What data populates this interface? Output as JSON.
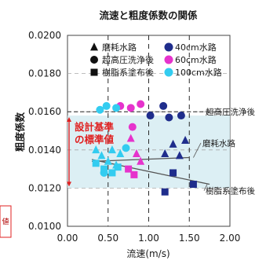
{
  "chart_data": {
    "type": "scatter",
    "title": "流速と粗度係数の関係",
    "xlabel": "流速(m/s)",
    "ylabel": "粗度係数",
    "xlim": [
      0.0,
      2.0
    ],
    "ylim": [
      0.01,
      0.02
    ],
    "x_ticks": [
      "0.00",
      "0.50",
      "1.00",
      "1.50",
      "2.00"
    ],
    "y_ticks": [
      "0.0100",
      "0.0120",
      "0.0140",
      "0.0160",
      "0.0180",
      "0.0200"
    ],
    "design_range": {
      "label": "設計基準\nの標準値",
      "ymin": 0.012,
      "ymax": 0.0158
    },
    "legend": {
      "shapes": [
        {
          "marker": "triangle",
          "label": "磨耗水路"
        },
        {
          "marker": "circle",
          "label": "超高圧洗浄後"
        },
        {
          "marker": "square",
          "label": "樹脂系塗布後"
        }
      ],
      "colors": [
        {
          "color": "#1f2d8c",
          "label": "40cm水路"
        },
        {
          "color": "#e633cc",
          "label": "60cm水路"
        },
        {
          "color": "#33ccf0",
          "label": "100cm水路"
        }
      ]
    },
    "reference_lines": [
      {
        "label": "超高圧洗浄後",
        "kind": "horizontal",
        "y": 0.016
      },
      {
        "label": "磨耗水路",
        "kind": "line",
        "points": [
          [
            0.3,
            0.0134
          ],
          [
            1.5,
            0.0136
          ]
        ]
      },
      {
        "label": "樹脂系塗布後",
        "kind": "line",
        "points": [
          [
            0.3,
            0.0135
          ],
          [
            1.75,
            0.0122
          ]
        ]
      }
    ],
    "series": [
      {
        "name": "40cm水路 超高圧洗浄後",
        "marker": "circle",
        "color": "#1f2d8c",
        "points": [
          [
            1.02,
            0.0158
          ],
          [
            1.18,
            0.0163
          ],
          [
            1.25,
            0.0157
          ],
          [
            1.4,
            0.0158
          ]
        ]
      },
      {
        "name": "60cm水路 超高圧洗浄後",
        "marker": "circle",
        "color": "#e633cc",
        "points": [
          [
            0.65,
            0.0163
          ],
          [
            0.78,
            0.0162
          ],
          [
            0.9,
            0.0164
          ],
          [
            0.8,
            0.0152
          ]
        ]
      },
      {
        "name": "100cm水路 超高圧洗浄後",
        "marker": "circle",
        "color": "#33ccf0",
        "points": [
          [
            0.4,
            0.0161
          ],
          [
            0.48,
            0.0163
          ],
          [
            0.6,
            0.0162
          ],
          [
            0.72,
            0.0141
          ],
          [
            0.45,
            0.0128
          ]
        ]
      },
      {
        "name": "40cm水路 磨耗水路",
        "marker": "triangle",
        "color": "#1f2d8c",
        "points": [
          [
            1.3,
            0.0143
          ],
          [
            1.38,
            0.0137
          ],
          [
            1.45,
            0.0145
          ],
          [
            1.2,
            0.0138
          ]
        ]
      },
      {
        "name": "60cm水路 磨耗水路",
        "marker": "triangle",
        "color": "#e633cc",
        "points": [
          [
            0.78,
            0.0146
          ],
          [
            0.85,
            0.0138
          ],
          [
            0.9,
            0.0134
          ]
        ]
      },
      {
        "name": "100cm水路 磨耗水路",
        "marker": "triangle",
        "color": "#33ccf0",
        "points": [
          [
            0.35,
            0.014
          ],
          [
            0.42,
            0.0137
          ],
          [
            0.5,
            0.0134
          ],
          [
            0.55,
            0.014
          ],
          [
            0.6,
            0.0132
          ],
          [
            0.65,
            0.0138
          ]
        ]
      },
      {
        "name": "40cm水路 樹脂系塗布後",
        "marker": "square",
        "color": "#1f2d8c",
        "points": [
          [
            1.2,
            0.0118
          ],
          [
            1.55,
            0.0122
          ],
          [
            1.3,
            0.0128
          ]
        ]
      },
      {
        "name": "60cm水路 樹脂系塗布後",
        "marker": "square",
        "color": "#e633cc",
        "points": [
          [
            0.75,
            0.013
          ],
          [
            0.82,
            0.0127
          ]
        ]
      },
      {
        "name": "100cm水路 樹脂系塗布後",
        "marker": "square",
        "color": "#33ccf0",
        "points": [
          [
            0.35,
            0.0133
          ],
          [
            0.45,
            0.013
          ],
          [
            0.55,
            0.0128
          ],
          [
            0.62,
            0.0131
          ]
        ]
      }
    ],
    "grid": true,
    "legend_position": "top-inside"
  },
  "stamp": {
    "text": "値"
  }
}
